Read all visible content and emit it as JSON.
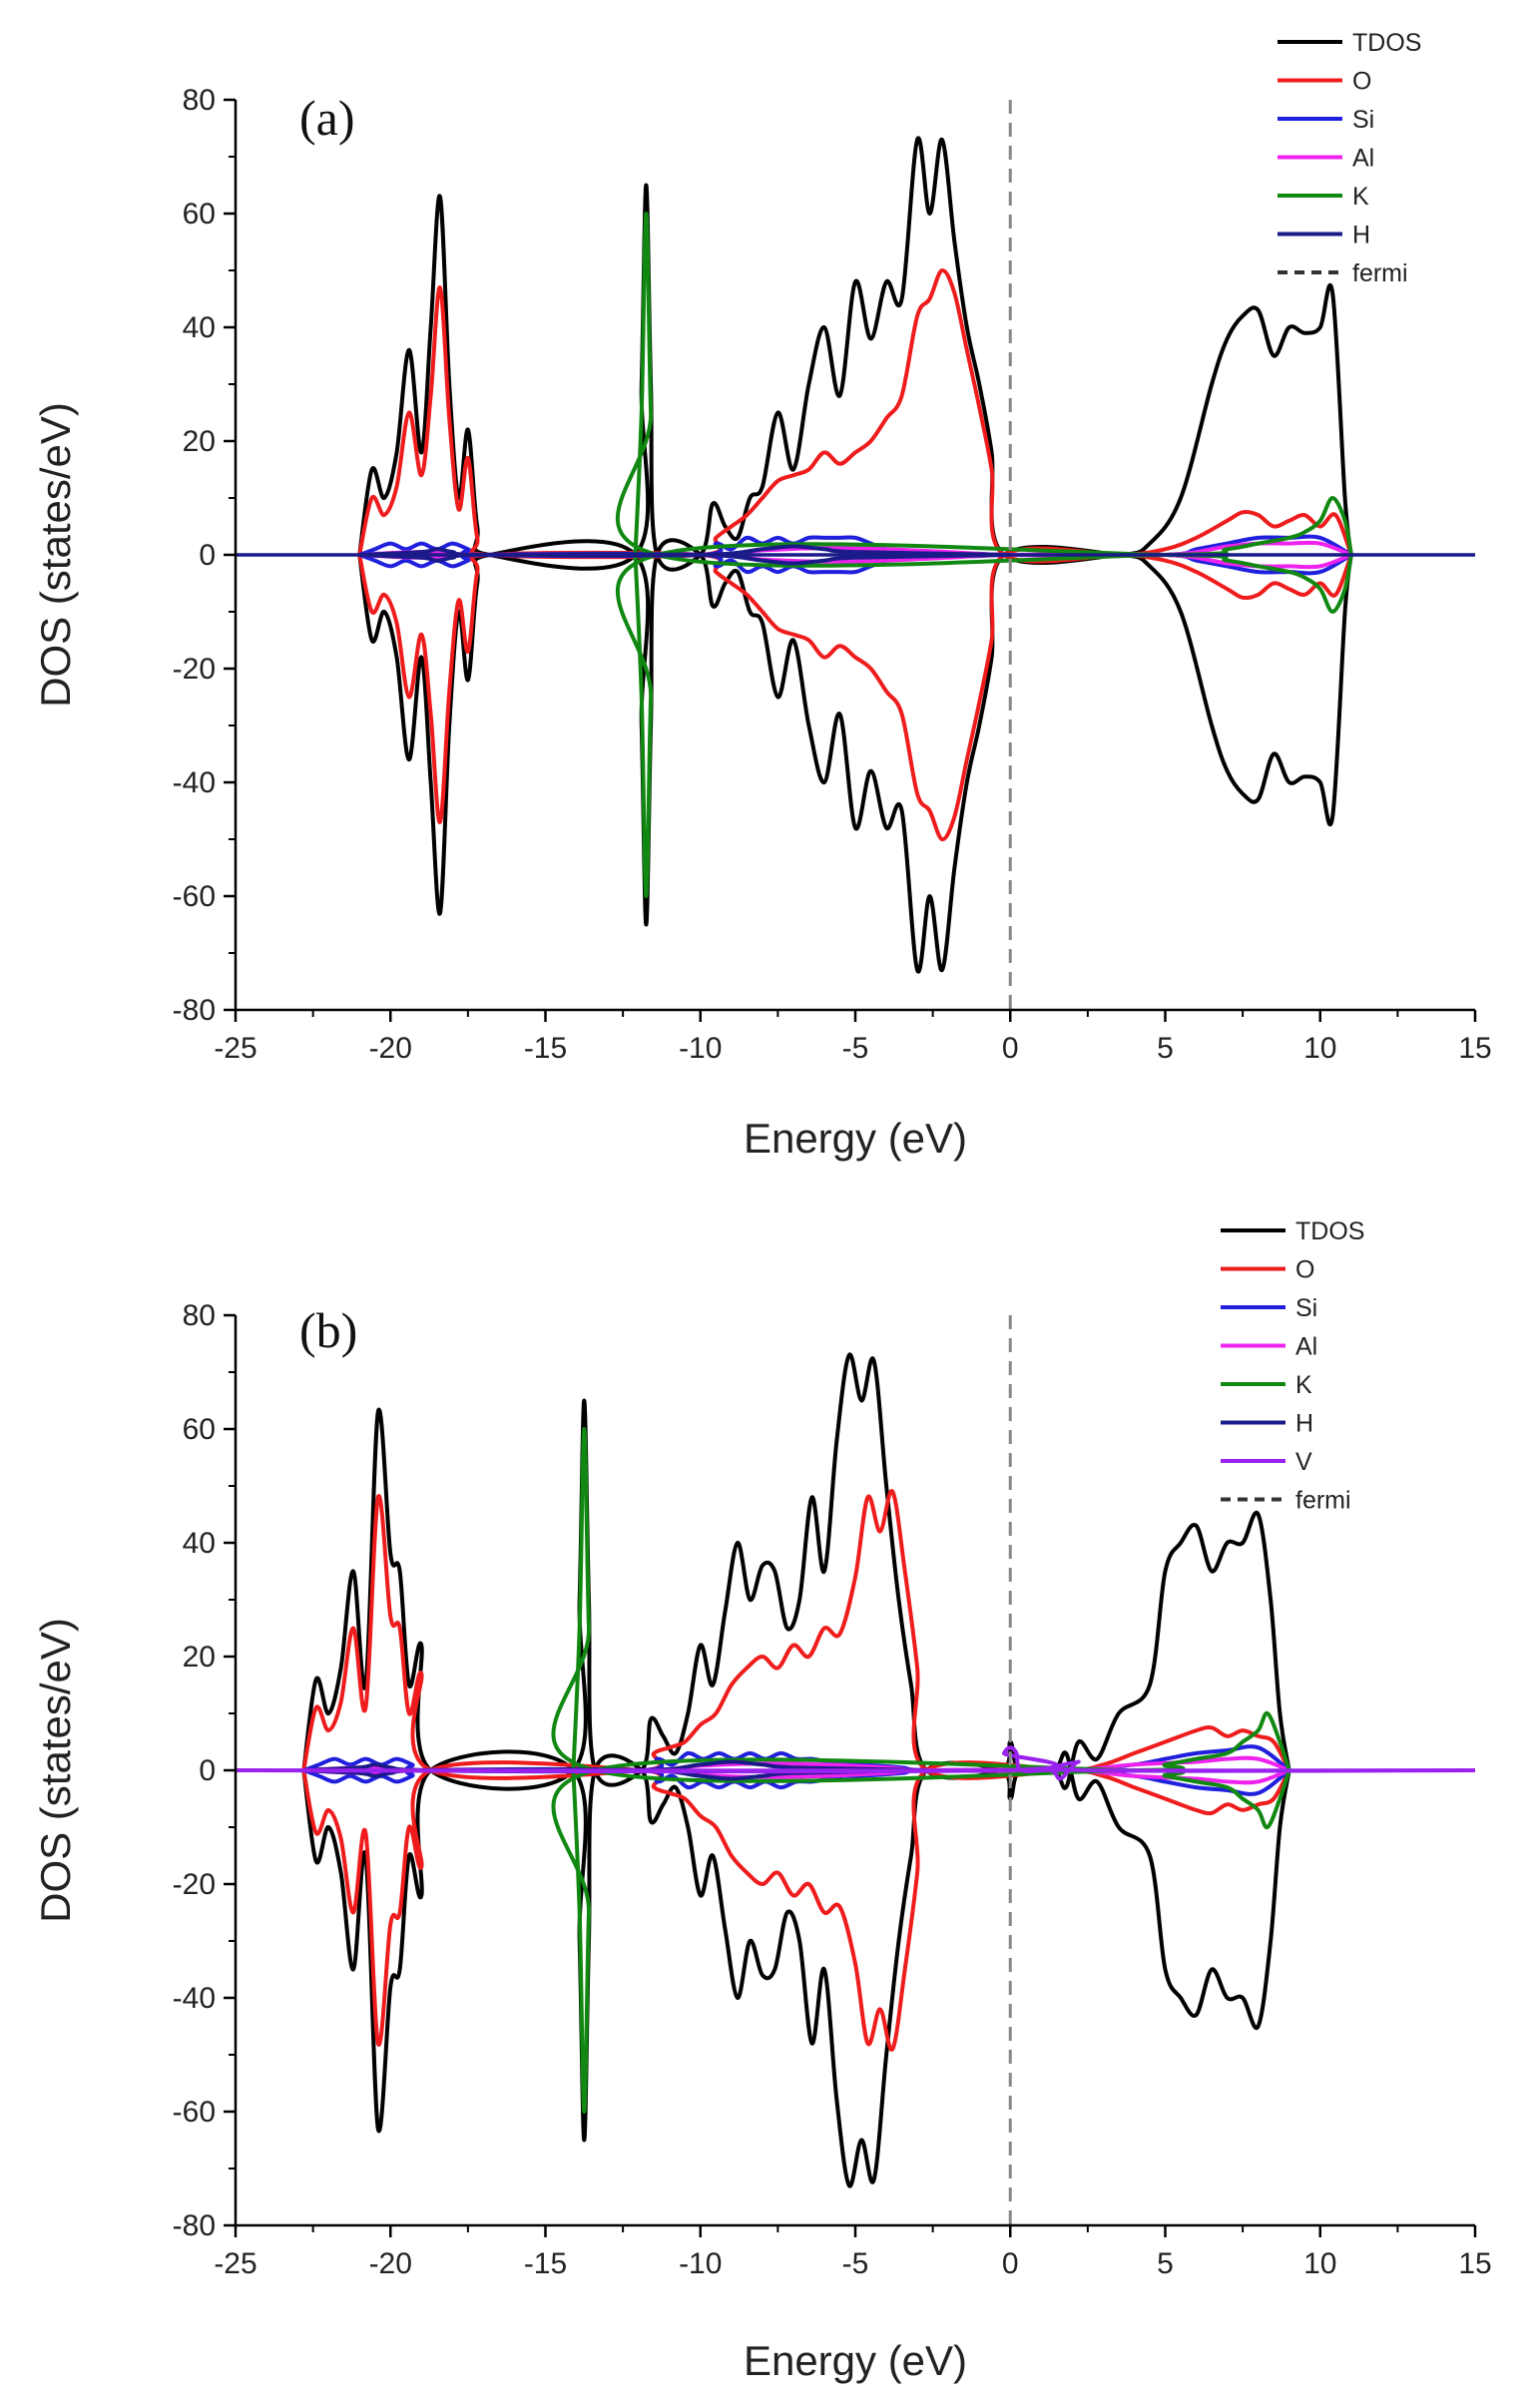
{
  "chart_data": [
    {
      "type": "line",
      "panel_label": "(a)",
      "xlabel": "Energy (eV)",
      "ylabel": "DOS (states/eV)",
      "xlim": [
        -25,
        15
      ],
      "ylim": [
        -80,
        80
      ],
      "xticks": [
        -25,
        -20,
        -15,
        -10,
        -5,
        0,
        5,
        10,
        15
      ],
      "yticks": [
        -80,
        -60,
        -40,
        -20,
        0,
        20,
        40,
        60,
        80
      ],
      "xtick_labels": [
        "-25",
        "-20",
        "-15",
        "-10",
        "-5",
        "0",
        "5",
        "10",
        "15"
      ],
      "ytick_labels": [
        "-80",
        "-60",
        "-40",
        "-20",
        "0",
        "20",
        "40",
        "60",
        "80"
      ],
      "fermi_level": 0,
      "legend_position": "top-right",
      "legend": [
        "TDOS",
        "O",
        "Si",
        "Al",
        "K",
        "H",
        "fermi"
      ],
      "series": [
        {
          "name": "TDOS",
          "color": "#000000",
          "mirrored": true,
          "x": [
            -21.0,
            -20.6,
            -20.2,
            -19.8,
            -19.4,
            -19.0,
            -18.7,
            -18.4,
            -18.1,
            -17.8,
            -17.5,
            -17.2,
            -16.8,
            -12.1,
            -11.9,
            -11.75,
            -11.6,
            -11.4,
            -10.0,
            -9.6,
            -9.2,
            -8.8,
            -8.4,
            -8.0,
            -7.5,
            -7.0,
            -6.5,
            -6.0,
            -5.5,
            -5.0,
            -4.5,
            -4.0,
            -3.5,
            -3.0,
            -2.6,
            -2.2,
            -1.8,
            -1.4,
            -1.0,
            -0.6,
            -0.2,
            3.5,
            4.5,
            5.5,
            6.5,
            7.0,
            7.5,
            8.0,
            8.5,
            9.0,
            9.5,
            10.0,
            10.4,
            10.8,
            11.0
          ],
          "values": [
            0,
            15,
            10,
            18,
            36,
            18,
            40,
            63,
            30,
            10,
            22,
            5,
            0,
            0,
            30,
            65,
            30,
            0,
            0,
            9,
            5,
            3,
            10,
            12,
            25,
            15,
            30,
            40,
            28,
            48,
            38,
            48,
            45,
            73,
            60,
            73,
            55,
            40,
            30,
            18,
            0,
            0,
            2,
            10,
            30,
            38,
            42,
            43,
            35,
            40,
            39,
            40,
            46,
            10,
            0
          ]
        },
        {
          "name": "O",
          "color": "#ee1c1c",
          "mirrored": true,
          "x": [
            -21.0,
            -20.6,
            -20.2,
            -19.8,
            -19.4,
            -19.0,
            -18.7,
            -18.4,
            -18.1,
            -17.8,
            -17.5,
            -17.2,
            -16.8,
            -10.0,
            -9.5,
            -9.0,
            -8.5,
            -8.0,
            -7.5,
            -7.0,
            -6.5,
            -6.0,
            -5.5,
            -5.0,
            -4.5,
            -4.0,
            -3.5,
            -3.0,
            -2.6,
            -2.2,
            -1.8,
            -1.4,
            -1.0,
            -0.6,
            -0.2,
            3.5,
            5.0,
            6.0,
            7.0,
            7.5,
            8.0,
            8.5,
            9.0,
            9.5,
            10.0,
            10.5,
            11.0
          ],
          "values": [
            0,
            10,
            7,
            12,
            25,
            14,
            28,
            47,
            24,
            8,
            17,
            3,
            0,
            0,
            3,
            5,
            7,
            10,
            13,
            14,
            15,
            18,
            16,
            18,
            20,
            24,
            28,
            42,
            45,
            50,
            46,
            36,
            26,
            15,
            0,
            0,
            1,
            3,
            6,
            7.5,
            7,
            5,
            6,
            7,
            5,
            7,
            0
          ]
        },
        {
          "name": "Si",
          "color": "#1f1fdd",
          "mirrored": true,
          "x": [
            -21.0,
            -20.5,
            -20.0,
            -19.5,
            -19.0,
            -18.5,
            -18.0,
            -17.5,
            -17.0,
            -10.0,
            -9.5,
            -9.0,
            -8.5,
            -8.0,
            -7.5,
            -7.0,
            -6.5,
            -6.0,
            -5.5,
            -5.0,
            -4.5,
            -4.0,
            -3.0,
            -2.0,
            -1.0,
            0.0,
            5.0,
            6.0,
            7.0,
            8.0,
            9.0,
            10.0,
            11.0
          ],
          "values": [
            0,
            1,
            2,
            1,
            2,
            1,
            2,
            1,
            0,
            0,
            2,
            1,
            3,
            2,
            3,
            2,
            3,
            3,
            3,
            3,
            2,
            1,
            0.5,
            0.3,
            0.2,
            0,
            0,
            1,
            2,
            3,
            3,
            3,
            0
          ]
        },
        {
          "name": "Al",
          "color": "#ee22ee",
          "mirrored": true,
          "x": [
            -21.0,
            -19.0,
            -17.0,
            -10.0,
            -8.0,
            -6.0,
            -4.0,
            -2.0,
            0.0,
            5.0,
            7.0,
            8.0,
            9.0,
            10.0,
            11.0
          ],
          "values": [
            0,
            0.5,
            0,
            0,
            0.8,
            1.2,
            1.0,
            0.5,
            0,
            0,
            1.5,
            2,
            2,
            2,
            0
          ]
        },
        {
          "name": "K",
          "color": "#118811",
          "mirrored": true,
          "x": [
            -12.1,
            -11.9,
            -11.75,
            -11.6,
            -11.4,
            5.0,
            7.0,
            8.0,
            9.0,
            9.5,
            10.0,
            10.4,
            10.8,
            11.0
          ],
          "values": [
            0,
            25,
            60,
            25,
            0,
            0,
            1,
            2,
            3,
            4,
            6,
            10,
            6,
            0
          ]
        },
        {
          "name": "H",
          "color": "#1a1a88",
          "mirrored": true,
          "x": [
            -21.0,
            -19.0,
            -18.5,
            -18.0,
            -17.0,
            -10.0,
            -8.0,
            -7.0,
            -6.0,
            -5.0,
            0.0
          ],
          "values": [
            0,
            0.5,
            1,
            0.5,
            0,
            0,
            1,
            1.5,
            1,
            0.5,
            0
          ]
        }
      ]
    },
    {
      "type": "line",
      "panel_label": "(b)",
      "xlabel": "Energy (eV)",
      "ylabel": "DOS (states/eV)",
      "xlim": [
        -25,
        15
      ],
      "ylim": [
        -80,
        80
      ],
      "xticks": [
        -25,
        -20,
        -15,
        -10,
        -5,
        0,
        5,
        10,
        15
      ],
      "yticks": [
        -80,
        -60,
        -40,
        -20,
        0,
        20,
        40,
        60,
        80
      ],
      "xtick_labels": [
        "-25",
        "-20",
        "-15",
        "-10",
        "-5",
        "0",
        "5",
        "10",
        "15"
      ],
      "ytick_labels": [
        "-80",
        "-60",
        "-40",
        "-20",
        "0",
        "20",
        "40",
        "60",
        "80"
      ],
      "fermi_level": 0,
      "legend_position": "top-right",
      "legend": [
        "TDOS",
        "O",
        "Si",
        "Al",
        "K",
        "H",
        "V",
        "fermi"
      ],
      "series": [
        {
          "name": "TDOS",
          "color": "#000000",
          "mirrored": true,
          "x": [
            -22.8,
            -22.4,
            -22.0,
            -21.6,
            -21.2,
            -20.8,
            -20.4,
            -20.0,
            -19.7,
            -19.4,
            -19.0,
            -18.7,
            -14.1,
            -13.9,
            -13.75,
            -13.6,
            -13.4,
            -11.9,
            -11.6,
            -11.2,
            -10.8,
            -10.4,
            -10.0,
            -9.6,
            -9.2,
            -8.8,
            -8.4,
            -8.0,
            -7.6,
            -7.2,
            -6.8,
            -6.4,
            -6.0,
            -5.6,
            -5.2,
            -4.8,
            -4.4,
            -4.0,
            -3.6,
            -3.2,
            -2.7,
            -0.3,
            0.0,
            0.3,
            1.4,
            1.8,
            2.2,
            2.8,
            3.5,
            4.5,
            5.0,
            5.5,
            6.0,
            6.5,
            7.0,
            7.5,
            8.0,
            8.4,
            8.7,
            9.0
          ],
          "values": [
            0,
            16,
            10,
            18,
            35,
            15,
            63,
            38,
            35,
            15,
            22,
            0,
            0,
            30,
            65,
            30,
            0,
            0,
            9,
            6,
            3,
            10,
            22,
            15,
            28,
            40,
            30,
            36,
            35,
            25,
            30,
            48,
            35,
            58,
            73,
            65,
            72,
            50,
            30,
            15,
            0,
            0,
            5,
            0,
            0,
            -3,
            5,
            2,
            10,
            15,
            35,
            40,
            43,
            35,
            40,
            40,
            45,
            30,
            10,
            0
          ]
        },
        {
          "name": "O",
          "color": "#ee1c1c",
          "mirrored": true,
          "x": [
            -22.8,
            -22.4,
            -22.0,
            -21.6,
            -21.2,
            -20.8,
            -20.4,
            -20.0,
            -19.7,
            -19.4,
            -19.0,
            -18.7,
            -11.9,
            -11.5,
            -11.0,
            -10.5,
            -10.0,
            -9.5,
            -9.0,
            -8.5,
            -8.0,
            -7.5,
            -7.0,
            -6.5,
            -6.0,
            -5.5,
            -5.0,
            -4.6,
            -4.2,
            -3.8,
            -3.4,
            -3.0,
            -2.7,
            1.8,
            3.0,
            4.0,
            5.0,
            6.0,
            6.5,
            7.0,
            7.5,
            8.0,
            8.5,
            9.0
          ],
          "values": [
            0,
            11,
            7,
            12,
            25,
            11,
            48,
            27,
            25,
            10,
            17,
            0,
            0,
            3,
            4,
            5,
            8,
            10,
            15,
            18,
            20,
            18,
            22,
            20,
            25,
            24,
            34,
            48,
            42,
            49,
            35,
            18,
            0,
            0,
            1,
            3,
            5,
            7,
            7.5,
            6,
            7,
            6,
            5,
            0
          ]
        },
        {
          "name": "Si",
          "color": "#1f1fdd",
          "mirrored": true,
          "x": [
            -22.8,
            -22.3,
            -21.8,
            -21.3,
            -20.8,
            -20.3,
            -19.8,
            -19.3,
            -18.8,
            -11.9,
            -11.4,
            -10.9,
            -10.4,
            -9.9,
            -9.4,
            -8.9,
            -8.4,
            -7.9,
            -7.4,
            -6.9,
            -6.4,
            -5.9,
            -5.4,
            -4.9,
            -3.5,
            -2.7,
            1.8,
            4.0,
            5.0,
            6.0,
            7.0,
            8.0,
            9.0
          ],
          "values": [
            0,
            1,
            2,
            1,
            2,
            1,
            2,
            1,
            0,
            0,
            2,
            1,
            3,
            2,
            3,
            2,
            3,
            2,
            3,
            2,
            2,
            1.5,
            1,
            1,
            0.5,
            0,
            0,
            1,
            2,
            3,
            3.5,
            4,
            0
          ]
        },
        {
          "name": "Al",
          "color": "#ee22ee",
          "mirrored": true,
          "x": [
            -22.8,
            -20.8,
            -18.8,
            -11.9,
            -10.0,
            -8.0,
            -6.0,
            -4.0,
            -2.7,
            1.8,
            4.0,
            6.0,
            7.0,
            8.0,
            9.0
          ],
          "values": [
            0,
            0.5,
            0,
            0,
            0.8,
            1.2,
            1.0,
            0.5,
            0,
            0,
            1,
            1.5,
            2,
            2,
            0
          ]
        },
        {
          "name": "K",
          "color": "#118811",
          "mirrored": true,
          "x": [
            -14.1,
            -13.9,
            -13.75,
            -13.6,
            -13.4,
            4.0,
            5.0,
            6.0,
            7.0,
            7.5,
            8.0,
            8.3,
            8.7,
            9.0
          ],
          "values": [
            0,
            25,
            60,
            25,
            0,
            0,
            1,
            2,
            3,
            5,
            7,
            10,
            5,
            0
          ]
        },
        {
          "name": "H",
          "color": "#1a1a88",
          "mirrored": true,
          "x": [
            -22.8,
            -21.0,
            -20.5,
            -20.0,
            -18.8,
            -11.9,
            -10.0,
            -9.0,
            -8.0,
            -7.0,
            -2.7
          ],
          "values": [
            0,
            0.5,
            1,
            0.5,
            0,
            0,
            1,
            1.5,
            1,
            0.5,
            0
          ]
        },
        {
          "name": "V",
          "color": "#9922ee",
          "mirrored": false,
          "x": [
            -25.0,
            -0.35,
            -0.2,
            0.0,
            0.2,
            0.35,
            1.3,
            1.6,
            1.9,
            2.2,
            2.5,
            15.0
          ],
          "values": [
            0,
            0,
            3,
            4,
            3,
            0,
            0,
            -1.5,
            0,
            1.5,
            0,
            0
          ]
        }
      ]
    }
  ]
}
